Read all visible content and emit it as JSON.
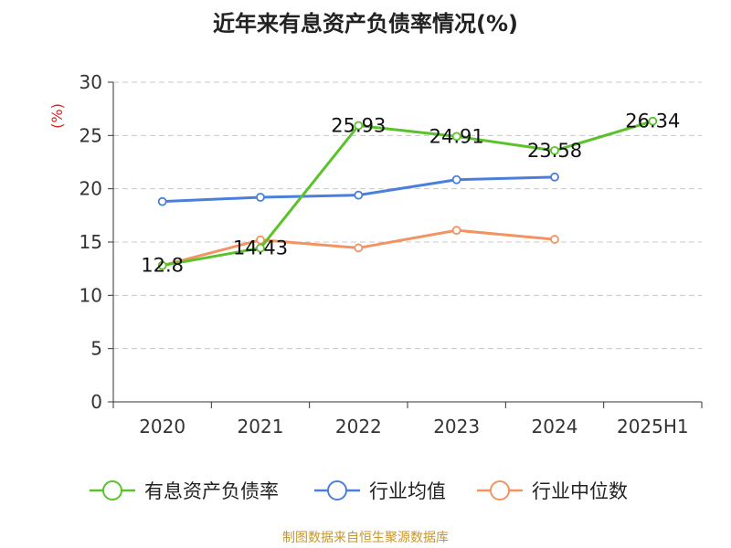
{
  "title": "近年来有息资产负债率情况(%)",
  "source": "制图数据来自恒生聚源数据库",
  "chart_data": {
    "type": "line",
    "title": "近年来有息资产负债率情况(%)",
    "ylabel": "(%)",
    "xlabel": "",
    "categories": [
      "2020",
      "2021",
      "2022",
      "2023",
      "2024",
      "2025H1"
    ],
    "ylim": [
      0,
      30
    ],
    "yticks": [
      0,
      5,
      10,
      15,
      20,
      25,
      30
    ],
    "grid": true,
    "legend_position": "bottom",
    "series": [
      {
        "name": "有息资产负债率",
        "color": "#5cc22c",
        "values": [
          12.8,
          14.43,
          25.93,
          24.91,
          23.58,
          26.34
        ],
        "labels": [
          "12.8",
          "14.43",
          "25.93",
          "24.91",
          "23.58",
          "26.34"
        ]
      },
      {
        "name": "行业均值",
        "color": "#4a7fdc",
        "values": [
          18.8,
          19.2,
          19.4,
          20.85,
          21.1,
          null
        ]
      },
      {
        "name": "行业中位数",
        "color": "#f39363",
        "values": [
          12.8,
          15.2,
          14.45,
          16.1,
          15.25,
          null
        ]
      }
    ]
  }
}
